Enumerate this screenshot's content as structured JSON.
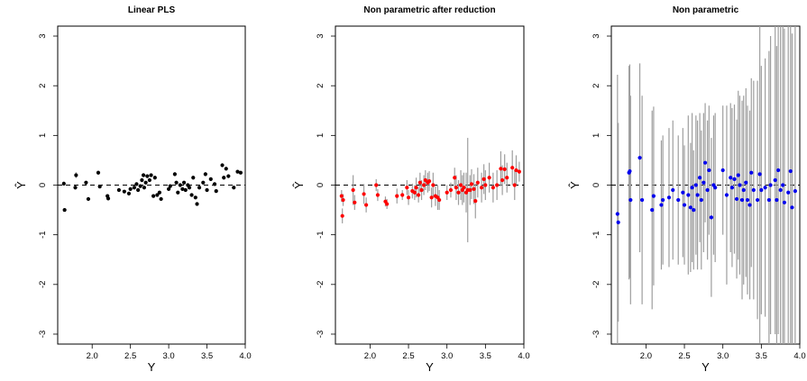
{
  "chart_data": [
    {
      "type": "scatter",
      "title": "Linear PLS",
      "xlabel": "Y",
      "ylabel": "Ŷ",
      "xlim": [
        1.55,
        4.0
      ],
      "ylim": [
        -3.2,
        3.2
      ],
      "x_ticks": [
        2.0,
        2.5,
        3.0,
        3.5,
        4.0
      ],
      "x_tick_labels": [
        "2.0",
        "2.5",
        "3.0",
        "3.5",
        "4.0"
      ],
      "y_ticks": [
        -3,
        -2,
        -1,
        0,
        1,
        2,
        3
      ],
      "y_tick_labels": [
        "-3",
        "-2",
        "-1",
        "0",
        "1",
        "2",
        "3"
      ],
      "reference_line": 0,
      "point_color": "#000000",
      "error_bar_color": "#9e9e9e",
      "points": [
        [
          1.63,
          0.03,
          0.04
        ],
        [
          1.64,
          -0.5,
          0.03
        ],
        [
          1.78,
          -0.05,
          0.04
        ],
        [
          1.79,
          0.2,
          0.06
        ],
        [
          1.92,
          0.05,
          0.03
        ],
        [
          1.95,
          -0.28,
          0.04
        ],
        [
          2.08,
          0.25,
          0.04
        ],
        [
          2.1,
          -0.03,
          0.03
        ],
        [
          2.2,
          -0.22,
          0.03
        ],
        [
          2.21,
          -0.27,
          0.03
        ],
        [
          2.35,
          -0.1,
          0.03
        ],
        [
          2.42,
          -0.13,
          0.03
        ],
        [
          2.48,
          -0.17,
          0.03
        ],
        [
          2.5,
          -0.08,
          0.03
        ],
        [
          2.55,
          -0.05,
          0.03
        ],
        [
          2.58,
          0.02,
          0.03
        ],
        [
          2.6,
          -0.1,
          0.03
        ],
        [
          2.63,
          -0.02,
          0.03
        ],
        [
          2.65,
          0.1,
          0.04
        ],
        [
          2.67,
          0.2,
          0.04
        ],
        [
          2.68,
          -0.05,
          0.03
        ],
        [
          2.7,
          0.05,
          0.03
        ],
        [
          2.72,
          0.18,
          0.04
        ],
        [
          2.75,
          0.1,
          0.03
        ],
        [
          2.77,
          0.2,
          0.03
        ],
        [
          2.8,
          -0.22,
          0.03
        ],
        [
          2.82,
          0.15,
          0.04
        ],
        [
          2.85,
          -0.2,
          0.03
        ],
        [
          2.88,
          -0.15,
          0.03
        ],
        [
          2.9,
          -0.28,
          0.03
        ],
        [
          3.0,
          -0.08,
          0.03
        ],
        [
          3.02,
          -0.02,
          0.03
        ],
        [
          3.08,
          0.22,
          0.04
        ],
        [
          3.1,
          0.05,
          0.03
        ],
        [
          3.12,
          -0.15,
          0.03
        ],
        [
          3.15,
          0.0,
          0.03
        ],
        [
          3.18,
          -0.08,
          0.03
        ],
        [
          3.2,
          0.05,
          0.03
        ],
        [
          3.22,
          -0.1,
          0.03
        ],
        [
          3.25,
          0.0,
          0.03
        ],
        [
          3.27,
          -0.05,
          0.03
        ],
        [
          3.3,
          -0.2,
          0.03
        ],
        [
          3.32,
          0.15,
          0.04
        ],
        [
          3.35,
          -0.25,
          0.03
        ],
        [
          3.37,
          -0.38,
          0.04
        ],
        [
          3.4,
          -0.05,
          0.03
        ],
        [
          3.45,
          0.05,
          0.03
        ],
        [
          3.48,
          0.22,
          0.04
        ],
        [
          3.5,
          -0.1,
          0.03
        ],
        [
          3.55,
          0.12,
          0.03
        ],
        [
          3.6,
          0.02,
          0.03
        ],
        [
          3.62,
          -0.12,
          0.03
        ],
        [
          3.7,
          0.4,
          0.04
        ],
        [
          3.72,
          0.15,
          0.04
        ],
        [
          3.75,
          0.33,
          0.04
        ],
        [
          3.78,
          0.18,
          0.04
        ],
        [
          3.85,
          -0.05,
          0.03
        ],
        [
          3.9,
          0.27,
          0.03
        ],
        [
          3.94,
          0.25,
          0.03
        ]
      ]
    },
    {
      "type": "scatter",
      "title": "Non parametric after reduction",
      "xlabel": "Y",
      "ylabel": "Ŷ",
      "xlim": [
        1.55,
        4.0
      ],
      "ylim": [
        -3.2,
        3.2
      ],
      "x_ticks": [
        2.0,
        2.5,
        3.0,
        3.5,
        4.0
      ],
      "x_tick_labels": [
        "2.0",
        "2.5",
        "3.0",
        "3.5",
        "4.0"
      ],
      "y_ticks": [
        -3,
        -2,
        -1,
        0,
        1,
        2,
        3
      ],
      "y_tick_labels": [
        "-3",
        "-2",
        "-1",
        "0",
        "1",
        "2",
        "3"
      ],
      "reference_line": 0,
      "point_color": "#ff0000",
      "error_bar_color": "#9e9e9e",
      "points": [
        [
          1.63,
          -0.22,
          0.12
        ],
        [
          1.64,
          -0.62,
          0.15
        ],
        [
          1.65,
          -0.3,
          0.12
        ],
        [
          1.78,
          -0.1,
          0.3
        ],
        [
          1.8,
          -0.35,
          0.15
        ],
        [
          1.92,
          -0.18,
          0.2
        ],
        [
          1.95,
          -0.4,
          0.15
        ],
        [
          2.08,
          0.0,
          0.12
        ],
        [
          2.1,
          -0.2,
          0.12
        ],
        [
          2.2,
          -0.33,
          0.1
        ],
        [
          2.22,
          -0.38,
          0.1
        ],
        [
          2.35,
          -0.22,
          0.15
        ],
        [
          2.42,
          -0.2,
          0.1
        ],
        [
          2.48,
          -0.05,
          0.15
        ],
        [
          2.5,
          -0.25,
          0.15
        ],
        [
          2.55,
          -0.12,
          0.15
        ],
        [
          2.58,
          -0.15,
          0.15
        ],
        [
          2.6,
          -0.05,
          0.2
        ],
        [
          2.63,
          -0.2,
          0.15
        ],
        [
          2.65,
          0.05,
          0.2
        ],
        [
          2.67,
          -0.1,
          0.2
        ],
        [
          2.7,
          0.0,
          0.2
        ],
        [
          2.72,
          0.1,
          0.2
        ],
        [
          2.75,
          0.05,
          0.2
        ],
        [
          2.77,
          0.08,
          0.2
        ],
        [
          2.8,
          -0.25,
          0.2
        ],
        [
          2.82,
          0.0,
          0.25
        ],
        [
          2.85,
          -0.22,
          0.2
        ],
        [
          2.88,
          -0.25,
          0.25
        ],
        [
          2.9,
          -0.3,
          0.2
        ],
        [
          3.0,
          -0.15,
          0.15
        ],
        [
          3.05,
          -0.1,
          0.15
        ],
        [
          3.1,
          0.15,
          0.2
        ],
        [
          3.12,
          -0.05,
          0.25
        ],
        [
          3.15,
          -0.15,
          0.25
        ],
        [
          3.18,
          0.0,
          0.3
        ],
        [
          3.2,
          -0.1,
          0.3
        ],
        [
          3.22,
          -0.05,
          0.3
        ],
        [
          3.25,
          -0.15,
          0.4
        ],
        [
          3.27,
          -0.1,
          1.05
        ],
        [
          3.3,
          -0.1,
          0.3
        ],
        [
          3.32,
          0.02,
          0.3
        ],
        [
          3.35,
          -0.08,
          0.3
        ],
        [
          3.37,
          -0.32,
          0.35
        ],
        [
          3.4,
          0.05,
          0.3
        ],
        [
          3.45,
          -0.05,
          0.3
        ],
        [
          3.48,
          0.12,
          0.3
        ],
        [
          3.5,
          0.0,
          0.3
        ],
        [
          3.55,
          0.15,
          0.3
        ],
        [
          3.6,
          -0.05,
          0.3
        ],
        [
          3.65,
          0.0,
          0.3
        ],
        [
          3.7,
          0.33,
          0.35
        ],
        [
          3.72,
          0.1,
          0.3
        ],
        [
          3.75,
          0.32,
          0.3
        ],
        [
          3.78,
          0.15,
          0.3
        ],
        [
          3.85,
          0.35,
          0.35
        ],
        [
          3.88,
          0.0,
          0.3
        ],
        [
          3.9,
          0.3,
          0.3
        ],
        [
          3.94,
          0.27,
          0.2
        ]
      ]
    },
    {
      "type": "scatter",
      "title": "Non parametric",
      "xlabel": "Y",
      "ylabel": "Ŷ",
      "xlim": [
        1.55,
        4.0
      ],
      "ylim": [
        -3.2,
        3.2
      ],
      "x_ticks": [
        2.0,
        2.5,
        3.0,
        3.5,
        4.0
      ],
      "x_tick_labels": [
        "2.0",
        "2.5",
        "3.0",
        "3.5",
        "4.0"
      ],
      "y_ticks": [
        -3,
        -2,
        -1,
        0,
        1,
        2,
        3
      ],
      "y_tick_labels": [
        "-3",
        "-2",
        "-1",
        "0",
        "1",
        "2",
        "3"
      ],
      "reference_line": 0,
      "point_color": "#0000ee",
      "error_bar_color": "#9e9e9e",
      "points": [
        [
          1.63,
          -0.58,
          2.8
        ],
        [
          1.64,
          -0.75,
          2.0
        ],
        [
          1.78,
          0.25,
          2.15
        ],
        [
          1.79,
          0.28,
          2.15
        ],
        [
          1.8,
          -0.3,
          2.1
        ],
        [
          1.92,
          0.55,
          1.9
        ],
        [
          1.95,
          -0.3,
          2.1
        ],
        [
          2.08,
          -0.5,
          2.0
        ],
        [
          2.1,
          -0.22,
          1.8
        ],
        [
          2.2,
          -0.4,
          1.3
        ],
        [
          2.22,
          -0.3,
          1.3
        ],
        [
          2.3,
          -0.25,
          1.4
        ],
        [
          2.35,
          -0.1,
          1.4
        ],
        [
          2.42,
          -0.3,
          1.3
        ],
        [
          2.48,
          -0.15,
          1.3
        ],
        [
          2.5,
          -0.4,
          1.2
        ],
        [
          2.55,
          -0.2,
          1.6
        ],
        [
          2.58,
          -0.45,
          1.3
        ],
        [
          2.6,
          -0.05,
          1.5
        ],
        [
          2.62,
          -0.5,
          1.2
        ],
        [
          2.65,
          0.0,
          1.4
        ],
        [
          2.67,
          -0.2,
          1.5
        ],
        [
          2.7,
          0.15,
          1.3
        ],
        [
          2.72,
          -0.3,
          1.4
        ],
        [
          2.75,
          0.05,
          1.4
        ],
        [
          2.77,
          0.45,
          1.2
        ],
        [
          2.8,
          -0.1,
          1.4
        ],
        [
          2.82,
          0.3,
          1.3
        ],
        [
          2.85,
          -0.65,
          1.6
        ],
        [
          2.88,
          0.0,
          1.4
        ],
        [
          2.9,
          -0.05,
          1.5
        ],
        [
          3.0,
          0.3,
          1.3
        ],
        [
          3.05,
          -0.2,
          1.8
        ],
        [
          3.1,
          0.15,
          1.5
        ],
        [
          3.12,
          -0.05,
          1.6
        ],
        [
          3.15,
          0.12,
          1.5
        ],
        [
          3.18,
          -0.28,
          1.6
        ],
        [
          3.2,
          0.2,
          1.7
        ],
        [
          3.22,
          0.0,
          1.8
        ],
        [
          3.25,
          -0.3,
          2.0
        ],
        [
          3.27,
          -0.1,
          1.9
        ],
        [
          3.3,
          0.05,
          1.9
        ],
        [
          3.32,
          -0.3,
          1.9
        ],
        [
          3.35,
          -0.4,
          1.9
        ],
        [
          3.37,
          0.25,
          1.9
        ],
        [
          3.4,
          -0.1,
          2.2
        ],
        [
          3.45,
          -0.3,
          2.4
        ],
        [
          3.48,
          0.22,
          3.4
        ],
        [
          3.5,
          -0.1,
          2.5
        ],
        [
          3.55,
          -0.05,
          2.6
        ],
        [
          3.6,
          -0.3,
          3.0
        ],
        [
          3.62,
          0.0,
          3.0
        ],
        [
          3.68,
          0.1,
          3.1
        ],
        [
          3.7,
          -0.3,
          3.1
        ],
        [
          3.72,
          0.3,
          3.3
        ],
        [
          3.75,
          -0.1,
          3.4
        ],
        [
          3.78,
          0.0,
          3.4
        ],
        [
          3.8,
          -0.35,
          3.5
        ],
        [
          3.85,
          -0.15,
          3.5
        ],
        [
          3.88,
          0.28,
          3.5
        ],
        [
          3.9,
          -0.45,
          3.5
        ],
        [
          3.94,
          -0.12,
          3.5
        ]
      ]
    }
  ]
}
